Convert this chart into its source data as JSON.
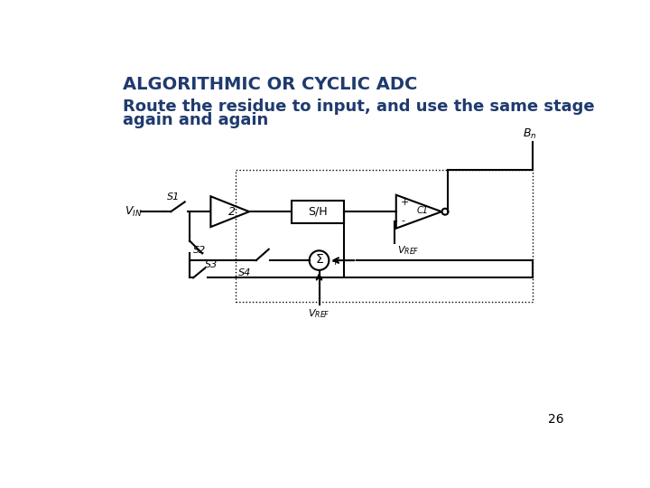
{
  "title": "ALGORITHMIC OR CYCLIC ADC",
  "subtitle_line1": "Route the residue to input, and use the same stage",
  "subtitle_line2": "again and again",
  "title_color": "#1F3A6E",
  "subtitle_color": "#1F3A6E",
  "bg_color": "#FFFFFF",
  "page_number": "26",
  "title_fontsize": 14,
  "subtitle_fontsize": 13
}
